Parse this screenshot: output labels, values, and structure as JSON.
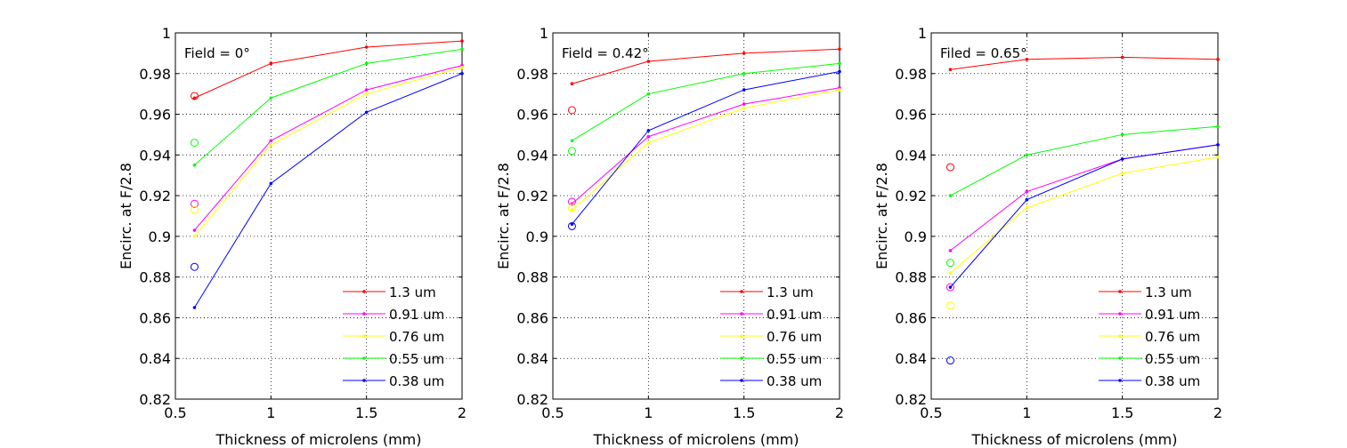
{
  "chart_data": [
    {
      "type": "line",
      "title": "",
      "annotation": "Field = 0°",
      "xlabel": "Thickness of microlens (mm)",
      "ylabel": "Encirc. at F/2.8",
      "xlim": [
        0.5,
        2
      ],
      "ylim": [
        0.82,
        1
      ],
      "xticks": [
        0.5,
        1,
        1.5,
        2
      ],
      "xtick_labels": [
        "0.5",
        "1",
        "1.5",
        "2"
      ],
      "yticks": [
        0.82,
        0.84,
        0.86,
        0.88,
        0.9,
        0.92,
        0.94,
        0.96,
        0.98,
        1
      ],
      "ytick_labels": [
        "0.82",
        "0.84",
        "0.86",
        "0.88",
        "0.9",
        "0.92",
        "0.94",
        "0.96",
        "0.98",
        "1"
      ],
      "grid": true,
      "legend_position": "bottom-right",
      "x": [
        0.6,
        1,
        1.5,
        2
      ],
      "series": [
        {
          "name": "1.3 um",
          "color": "#ff0000",
          "values": [
            0.968,
            0.985,
            0.993,
            0.996
          ],
          "circle": 0.969
        },
        {
          "name": "0.91 um",
          "color": "#ff00ff",
          "values": [
            0.903,
            0.947,
            0.972,
            0.984
          ],
          "circle": 0.916
        },
        {
          "name": "0.76 um",
          "color": "#ffff00",
          "values": [
            0.9,
            0.945,
            0.97,
            0.983
          ],
          "circle": 0.913
        },
        {
          "name": "0.55 um",
          "color": "#00ff00",
          "values": [
            0.935,
            0.968,
            0.985,
            0.992
          ],
          "circle": 0.946
        },
        {
          "name": "0.38 um",
          "color": "#0000ff",
          "values": [
            0.865,
            0.926,
            0.961,
            0.98
          ],
          "circle": 0.885
        }
      ]
    },
    {
      "type": "line",
      "title": "",
      "annotation": "Field = 0.42°",
      "xlabel": "Thickness of microlens (mm)",
      "ylabel": "Encirc. at F/2.8",
      "xlim": [
        0.5,
        2
      ],
      "ylim": [
        0.82,
        1
      ],
      "xticks": [
        0.5,
        1,
        1.5,
        2
      ],
      "xtick_labels": [
        "0.5",
        "1",
        "1.5",
        "2"
      ],
      "yticks": [
        0.82,
        0.84,
        0.86,
        0.88,
        0.9,
        0.92,
        0.94,
        0.96,
        0.98,
        1
      ],
      "ytick_labels": [
        "0.82",
        "0.84",
        "0.86",
        "0.88",
        "0.9",
        "0.92",
        "0.94",
        "0.96",
        "0.98",
        "1"
      ],
      "grid": true,
      "legend_position": "bottom-right",
      "x": [
        0.6,
        1,
        1.5,
        2
      ],
      "series": [
        {
          "name": "1.3 um",
          "color": "#ff0000",
          "values": [
            0.975,
            0.986,
            0.99,
            0.992
          ],
          "circle": 0.962
        },
        {
          "name": "0.91 um",
          "color": "#ff00ff",
          "values": [
            0.916,
            0.949,
            0.965,
            0.973
          ],
          "circle": 0.917
        },
        {
          "name": "0.76 um",
          "color": "#ffff00",
          "values": [
            0.913,
            0.946,
            0.963,
            0.972
          ],
          "circle": 0.914
        },
        {
          "name": "0.55 um",
          "color": "#00ff00",
          "values": [
            0.947,
            0.97,
            0.98,
            0.985
          ],
          "circle": 0.942
        },
        {
          "name": "0.38 um",
          "color": "#0000ff",
          "values": [
            0.906,
            0.952,
            0.972,
            0.981
          ],
          "circle": 0.905
        }
      ]
    },
    {
      "type": "line",
      "title": "",
      "annotation": "Filed = 0.65°",
      "xlabel": "Thickness of microlens (mm)",
      "ylabel": "Encirc. at F/2.8",
      "xlim": [
        0.5,
        2
      ],
      "ylim": [
        0.82,
        1
      ],
      "xticks": [
        0.5,
        1,
        1.5,
        2
      ],
      "xtick_labels": [
        "0.5",
        "1",
        "1.5",
        "2"
      ],
      "yticks": [
        0.82,
        0.84,
        0.86,
        0.88,
        0.9,
        0.92,
        0.94,
        0.96,
        0.98,
        1
      ],
      "ytick_labels": [
        "0.82",
        "0.84",
        "0.86",
        "0.88",
        "0.9",
        "0.92",
        "0.94",
        "0.96",
        "0.98",
        "1"
      ],
      "grid": true,
      "legend_position": "bottom-right",
      "x": [
        0.6,
        1,
        1.5,
        2
      ],
      "series": [
        {
          "name": "1.3 um",
          "color": "#ff0000",
          "values": [
            0.982,
            0.987,
            0.988,
            0.987
          ],
          "circle": 0.934
        },
        {
          "name": "0.91 um",
          "color": "#ff00ff",
          "values": [
            0.893,
            0.922,
            0.938,
            0.945
          ],
          "circle": 0.875
        },
        {
          "name": "0.76 um",
          "color": "#ffff00",
          "values": [
            0.882,
            0.914,
            0.931,
            0.939
          ],
          "circle": 0.866
        },
        {
          "name": "0.55 um",
          "color": "#00ff00",
          "values": [
            0.92,
            0.94,
            0.95,
            0.954
          ],
          "circle": 0.887
        },
        {
          "name": "0.38 um",
          "color": "#0000ff",
          "values": [
            0.875,
            0.918,
            0.938,
            0.945
          ],
          "circle": 0.839
        }
      ]
    }
  ]
}
